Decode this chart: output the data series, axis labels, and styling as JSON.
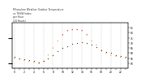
{
  "title": "Milwaukee Weather Outdoor Temperature\nvs THSW Index\nper Hour\n(24 Hours)",
  "temp_hours": [
    0,
    1,
    2,
    3,
    4,
    5,
    6,
    7,
    8,
    9,
    10,
    11,
    12,
    13,
    14,
    15,
    16,
    17,
    18,
    19,
    20,
    21,
    22,
    23
  ],
  "temp_vals": [
    56,
    55,
    54,
    53,
    52,
    51,
    52,
    55,
    58,
    62,
    65,
    67,
    69,
    70,
    71,
    70,
    68,
    66,
    63,
    61,
    60,
    58,
    57,
    56
  ],
  "thsw_hours": [
    0,
    1,
    2,
    3,
    4,
    5,
    6,
    7,
    8,
    9,
    10,
    11,
    12,
    13,
    14,
    15,
    16,
    17,
    18,
    19,
    20,
    21,
    22,
    23
  ],
  "thsw_vals": [
    55,
    54,
    53,
    52,
    51,
    50,
    52,
    58,
    65,
    72,
    78,
    82,
    83,
    83,
    82,
    78,
    72,
    68,
    63,
    60,
    58,
    57,
    56,
    55
  ],
  "temp_color": "#333333",
  "thsw_color_low": "#ff8800",
  "thsw_color_high": "#cc0000",
  "thsw_threshold": 75,
  "bg_color": "#ffffff",
  "grid_color": "#aaaaaa",
  "ylim_min": 45,
  "ylim_max": 90,
  "xlim_min": -0.5,
  "xlim_max": 23.5,
  "xtick_positions": [
    0,
    1,
    2,
    3,
    4,
    5,
    6,
    7,
    8,
    9,
    10,
    11,
    12,
    13,
    14,
    15,
    16,
    17,
    18,
    19,
    20,
    21,
    22,
    23
  ],
  "xtick_labels": [
    "0",
    "",
    "2",
    "",
    "4",
    "",
    "6",
    "",
    "8",
    "",
    "10",
    "",
    "12",
    "",
    "14",
    "",
    "16",
    "",
    "18",
    "",
    "20",
    "",
    "22",
    ""
  ],
  "ytick_right": [
    50,
    55,
    60,
    65,
    70,
    75,
    80,
    85
  ],
  "vgrid_positions": [
    0,
    2,
    4,
    6,
    8,
    10,
    12,
    14,
    16,
    18,
    20,
    22
  ]
}
